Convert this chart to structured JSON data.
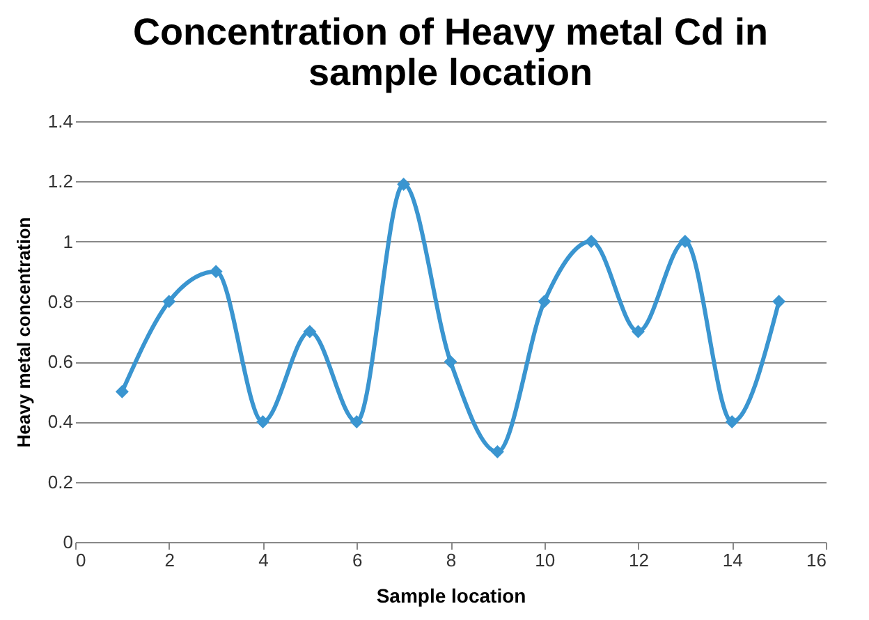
{
  "chart_data": {
    "type": "line",
    "title": "Concentration of Heavy metal Cd in sample location",
    "xlabel": "Sample location",
    "ylabel": "Heavy metal concentration",
    "x": [
      1,
      2,
      3,
      4,
      5,
      6,
      7,
      8,
      9,
      10,
      11,
      12,
      13,
      14,
      15
    ],
    "series": [
      {
        "color": "#3a95d0",
        "values": [
          0.5,
          0.8,
          0.9,
          0.4,
          0.7,
          0.4,
          1.19,
          0.6,
          0.3,
          0.8,
          1.0,
          0.7,
          1.0,
          0.4,
          0.8
        ]
      }
    ],
    "xlim": [
      0,
      16
    ],
    "xticks": [
      0,
      2,
      4,
      6,
      8,
      10,
      12,
      14,
      16
    ],
    "ylim": [
      0,
      1.4
    ],
    "yticks": [
      0,
      0.2,
      0.4,
      0.6,
      0.8,
      1,
      1.2,
      1.4
    ],
    "grid": "y",
    "marker": "diamond",
    "line_style": "solid",
    "legend": false
  }
}
